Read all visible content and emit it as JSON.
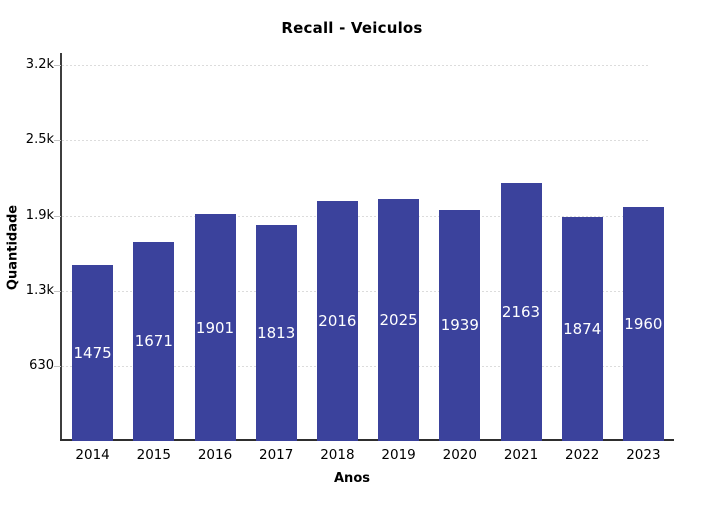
{
  "chart_data": {
    "type": "bar",
    "title": "Recall - Veiculos",
    "xlabel": "Anos",
    "ylabel": "Quantidade",
    "categories": [
      "2014",
      "2015",
      "2016",
      "2017",
      "2018",
      "2019",
      "2020",
      "2021",
      "2022",
      "2023"
    ],
    "values": [
      1475,
      1671,
      1901,
      1813,
      2016,
      2025,
      1939,
      2163,
      1874,
      1960
    ],
    "ylim": [
      0,
      3253
    ],
    "yticks": [
      {
        "value": 630,
        "label": "630"
      },
      {
        "value": 1260,
        "label": "1.3k"
      },
      {
        "value": 1890,
        "label": "1.9k"
      },
      {
        "value": 2520,
        "label": "2.5k"
      },
      {
        "value": 3150,
        "label": "3.2k"
      }
    ],
    "grid": "horizontal-dashed",
    "legend": "none",
    "bar_label_position": "inside-middle",
    "colors": {
      "bar": "#3b429c",
      "bar_label": "#ffffff",
      "grid": "#dcdcdc",
      "axis_line": "#3d3d3d",
      "text": "#000000",
      "background": "#ffffff"
    }
  }
}
